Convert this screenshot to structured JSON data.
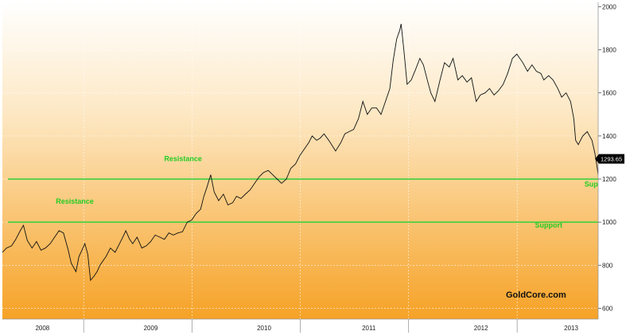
{
  "chart_data": {
    "type": "line",
    "title": "",
    "xlabel": "",
    "ylabel": "",
    "ylim": [
      550,
      2020
    ],
    "y_ticks": [
      600,
      800,
      1000,
      1200,
      1400,
      1600,
      1800,
      2000
    ],
    "y_tick_labels": [
      "600",
      "800",
      "1000",
      "1200",
      "1400",
      "1600",
      "1800",
      "2000"
    ],
    "x_range": [
      "2008-01-01",
      "2013-07-01"
    ],
    "x_year_labels": [
      "2008",
      "2009",
      "2010",
      "2011",
      "2012",
      "2013"
    ],
    "x_year_label_dates": [
      "2008-05-15",
      "2009-05-15",
      "2010-06-01",
      "2011-05-20",
      "2012-06-01",
      "2013-04-01"
    ],
    "x_year_boundaries": [
      "2008-10-01",
      "2009-10-01",
      "2010-10-01",
      "2011-10-01",
      "2012-10-01"
    ],
    "grid": true,
    "last_value": 1293.65,
    "last_value_label": "1293.65",
    "series": [
      {
        "x": [
          "2008-01-01",
          "2008-01-15",
          "2008-02-01",
          "2008-02-15",
          "2008-03-01",
          "2008-03-12",
          "2008-03-25",
          "2008-04-10",
          "2008-04-25",
          "2008-05-10",
          "2008-05-25",
          "2008-06-10",
          "2008-06-25",
          "2008-07-10",
          "2008-07-25",
          "2008-08-10",
          "2008-08-20",
          "2008-09-05",
          "2008-09-15",
          "2008-09-25",
          "2008-10-05",
          "2008-10-15",
          "2008-10-24",
          "2008-11-05",
          "2008-11-15",
          "2008-11-25",
          "2008-12-05",
          "2008-12-15",
          "2008-12-30",
          "2009-01-15",
          "2009-01-30",
          "2009-02-10",
          "2009-02-20",
          "2009-03-05",
          "2009-03-15",
          "2009-03-30",
          "2009-04-15",
          "2009-04-30",
          "2009-05-15",
          "2009-05-30",
          "2009-06-15",
          "2009-06-30",
          "2009-07-15",
          "2009-07-30",
          "2009-08-15",
          "2009-08-30",
          "2009-09-15",
          "2009-09-30",
          "2009-10-15",
          "2009-10-30",
          "2009-11-10",
          "2009-11-20",
          "2009-12-03",
          "2009-12-15",
          "2009-12-30",
          "2010-01-15",
          "2010-01-30",
          "2010-02-15",
          "2010-02-28",
          "2010-03-15",
          "2010-03-30",
          "2010-04-15",
          "2010-04-30",
          "2010-05-15",
          "2010-05-30",
          "2010-06-15",
          "2010-06-30",
          "2010-07-15",
          "2010-07-30",
          "2010-08-15",
          "2010-08-30",
          "2010-09-15",
          "2010-09-30",
          "2010-10-15",
          "2010-10-30",
          "2010-11-10",
          "2010-11-25",
          "2010-12-07",
          "2010-12-20",
          "2011-01-05",
          "2011-01-28",
          "2011-02-15",
          "2011-02-28",
          "2011-03-15",
          "2011-03-30",
          "2011-04-15",
          "2011-04-30",
          "2011-05-15",
          "2011-05-30",
          "2011-06-15",
          "2011-06-30",
          "2011-07-15",
          "2011-07-30",
          "2011-08-10",
          "2011-08-22",
          "2011-09-01",
          "2011-09-06",
          "2011-09-15",
          "2011-09-26",
          "2011-10-10",
          "2011-10-25",
          "2011-11-08",
          "2011-11-20",
          "2011-12-05",
          "2011-12-15",
          "2011-12-29",
          "2012-01-15",
          "2012-01-30",
          "2012-02-15",
          "2012-02-28",
          "2012-03-15",
          "2012-03-30",
          "2012-04-15",
          "2012-04-30",
          "2012-05-16",
          "2012-05-30",
          "2012-06-15",
          "2012-06-30",
          "2012-07-15",
          "2012-07-30",
          "2012-08-15",
          "2012-08-30",
          "2012-09-15",
          "2012-09-30",
          "2012-10-05",
          "2012-10-20",
          "2012-11-05",
          "2012-11-20",
          "2012-12-05",
          "2012-12-20",
          "2012-12-30",
          "2013-01-15",
          "2013-01-30",
          "2013-02-15",
          "2013-02-28",
          "2013-03-15",
          "2013-03-30",
          "2013-04-10",
          "2013-04-16",
          "2013-04-25",
          "2013-05-10",
          "2013-05-25",
          "2013-06-10",
          "2013-06-20",
          "2013-06-28",
          "2013-07-05",
          "2013-07-15",
          "2013-07-30",
          "2013-08-15",
          "2013-08-28",
          "2013-09-10",
          "2013-09-25",
          "2013-10-05"
        ],
        "y": [
          860,
          880,
          890,
          920,
          960,
          985,
          915,
          880,
          910,
          870,
          880,
          900,
          930,
          960,
          950,
          870,
          810,
          770,
          840,
          870,
          900,
          850,
          730,
          750,
          770,
          800,
          820,
          840,
          880,
          860,
          900,
          930,
          960,
          920,
          900,
          930,
          880,
          890,
          910,
          940,
          930,
          920,
          950,
          940,
          950,
          955,
          1000,
          1010,
          1040,
          1060,
          1120,
          1160,
          1220,
          1140,
          1100,
          1130,
          1080,
          1090,
          1120,
          1110,
          1130,
          1150,
          1180,
          1210,
          1230,
          1240,
          1220,
          1200,
          1180,
          1200,
          1250,
          1270,
          1310,
          1340,
          1370,
          1400,
          1380,
          1390,
          1410,
          1380,
          1330,
          1370,
          1410,
          1420,
          1430,
          1480,
          1560,
          1500,
          1530,
          1530,
          1500,
          1560,
          1620,
          1750,
          1850,
          1890,
          1920,
          1800,
          1640,
          1660,
          1710,
          1760,
          1730,
          1650,
          1600,
          1560,
          1660,
          1740,
          1720,
          1760,
          1660,
          1680,
          1650,
          1670,
          1560,
          1590,
          1600,
          1620,
          1590,
          1610,
          1640,
          1690,
          1760,
          1780,
          1770,
          1740,
          1700,
          1730,
          1700,
          1690,
          1660,
          1680,
          1660,
          1620,
          1580,
          1600,
          1560,
          1480,
          1380,
          1360,
          1400,
          1420,
          1380,
          1320,
          1250,
          1180,
          1220,
          1280,
          1320,
          1300,
          1340,
          1290,
          1300
        ]
      }
    ],
    "annotations": [
      {
        "text": "Resistance",
        "x": "2008-09-01",
        "y": 1085,
        "color": "#22cc22"
      },
      {
        "text": "Resistance",
        "x": "2009-09-01",
        "y": 1284,
        "color": "#22cc22"
      },
      {
        "text": "Support",
        "x": "2013-07-01",
        "y": 1165,
        "color": "#22cc22"
      },
      {
        "text": "Support",
        "x": "2013-01-15",
        "y": 975,
        "color": "#22cc22"
      }
    ],
    "reference_lines": [
      {
        "y": 1200,
        "color": "#3fd23f"
      },
      {
        "y": 1000,
        "color": "#3fd23f"
      }
    ],
    "watermark": "GoldCore.com",
    "colors": {
      "bg_top": "#ffffff",
      "bg_bottom": "#f6a226",
      "line": "#111111",
      "grid": "#ffffff",
      "axis_text": "#222222",
      "last_badge": "#000000"
    }
  }
}
